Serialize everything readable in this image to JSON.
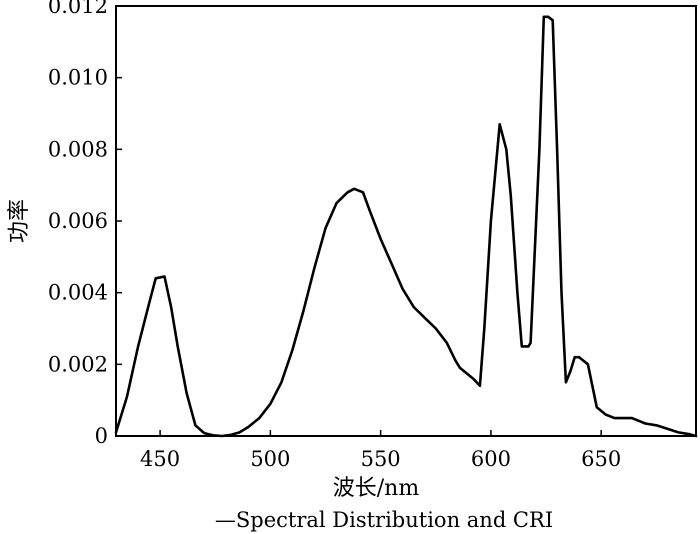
{
  "chart_data": {
    "type": "line",
    "xlabel": "波长/nm",
    "ylabel": "功率",
    "caption": "—Spectral Distribution and CRI",
    "xlim": [
      430,
      693
    ],
    "ylim": [
      0,
      0.012
    ],
    "x_ticks": [
      450,
      500,
      550,
      600,
      650
    ],
    "x_tick_labels": [
      "450",
      "500",
      "550",
      "600",
      "650"
    ],
    "y_ticks": [
      0,
      0.002,
      0.004,
      0.006,
      0.008,
      0.01,
      0.012
    ],
    "y_tick_labels": [
      "0",
      "0.002",
      "0.004",
      "0.006",
      "0.008",
      "0.010",
      "0.012"
    ],
    "grid": false,
    "line_color": "#000000",
    "series": [
      {
        "x": [
          430,
          435,
          440,
          445,
          448,
          452,
          455,
          458,
          462,
          466,
          470,
          474,
          478,
          482,
          486,
          490,
          495,
          500,
          505,
          510,
          515,
          520,
          525,
          530,
          535,
          538,
          542,
          545,
          550,
          555,
          560,
          565,
          570,
          575,
          580,
          584,
          586,
          588,
          592,
          595,
          597,
          600,
          604,
          607,
          609,
          612,
          614,
          617,
          618,
          622,
          624,
          626,
          628,
          630,
          632,
          634,
          636,
          638,
          640,
          642,
          644,
          648,
          652,
          656,
          660,
          664,
          668,
          670,
          675,
          680,
          685,
          690,
          693
        ],
        "y": [
          0.0001,
          0.0011,
          0.0025,
          0.0037,
          0.0044,
          0.00445,
          0.0036,
          0.0025,
          0.0012,
          0.0003,
          8e-05,
          2e-05,
          0.0,
          3e-05,
          0.0001,
          0.00025,
          0.0005,
          0.0009,
          0.0015,
          0.0024,
          0.0035,
          0.0047,
          0.0058,
          0.0065,
          0.0068,
          0.0069,
          0.0068,
          0.0063,
          0.0055,
          0.0048,
          0.0041,
          0.0036,
          0.0033,
          0.003,
          0.0026,
          0.0021,
          0.0019,
          0.0018,
          0.0016,
          0.0014,
          0.003,
          0.006,
          0.0087,
          0.008,
          0.0067,
          0.004,
          0.0025,
          0.0025,
          0.0026,
          0.008,
          0.0117,
          0.0117,
          0.0116,
          0.008,
          0.004,
          0.0015,
          0.0018,
          0.0022,
          0.0022,
          0.0021,
          0.002,
          0.0008,
          0.0006,
          0.0005,
          0.0005,
          0.0005,
          0.0004,
          0.00035,
          0.0003,
          0.0002,
          0.0001,
          5e-05,
          0.0
        ]
      }
    ]
  }
}
